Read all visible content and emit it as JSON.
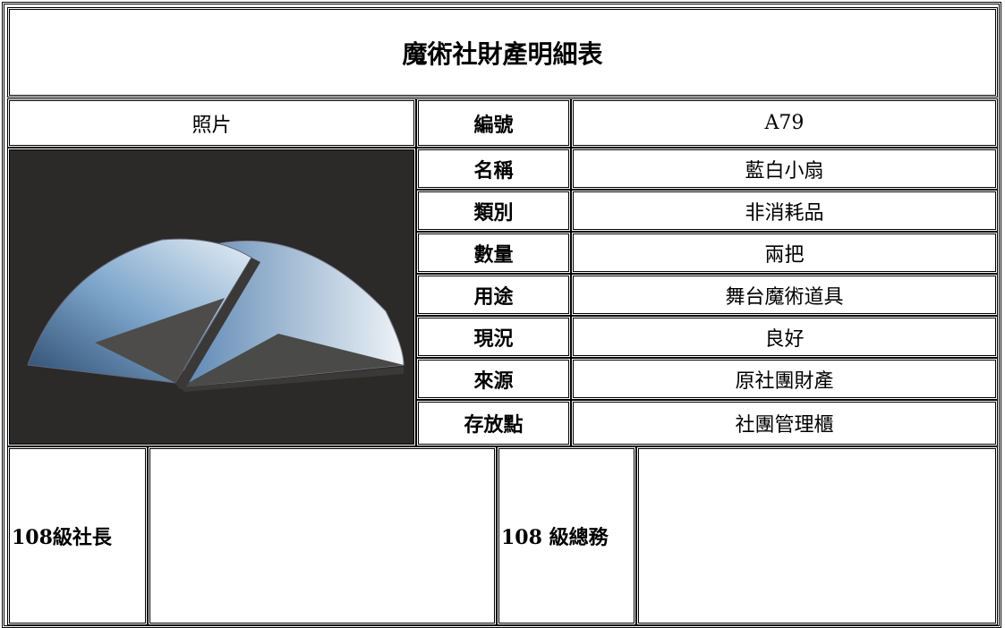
{
  "title": "魔術社財產明細表",
  "photo_label": "照片",
  "fields": [
    {
      "label": "編號",
      "value": "A79"
    },
    {
      "label": "名稱",
      "value": "藍白小扇"
    },
    {
      "label": "類別",
      "value": "非消耗品"
    },
    {
      "label": "數量",
      "value": "兩把"
    },
    {
      "label": "用途",
      "value": "舞台魔術道具"
    },
    {
      "label": "現況",
      "value": "良好"
    },
    {
      "label": "來源",
      "value": "原社團財產"
    },
    {
      "label": "存放點",
      "value": "社團管理櫃"
    }
  ],
  "signatures": [
    {
      "label": "108級社長"
    },
    {
      "label": "108 級總務"
    }
  ]
}
